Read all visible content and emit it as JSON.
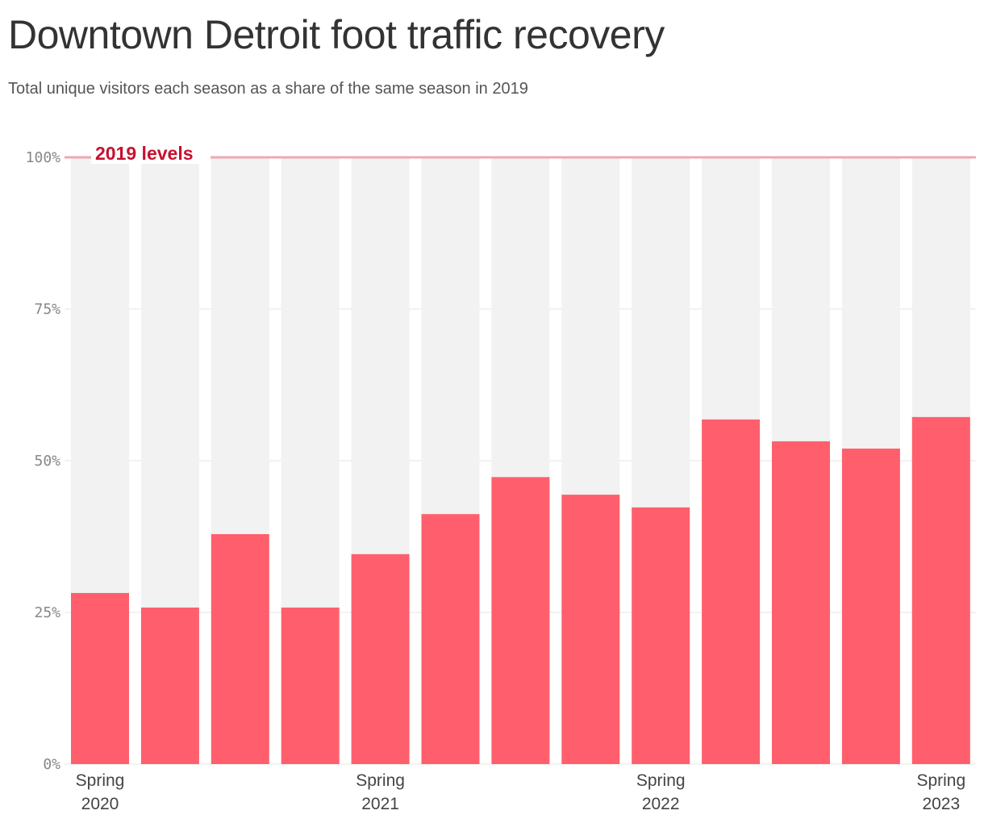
{
  "chart_data": {
    "type": "bar",
    "title": "Downtown Detroit foot traffic recovery",
    "subtitle": "Total unique visitors each season as a share of the same season in 2019",
    "values": [
      28.2,
      25.8,
      37.9,
      25.8,
      34.6,
      41.2,
      47.3,
      44.4,
      42.3,
      56.8,
      53.2,
      52.0,
      57.2
    ],
    "x_ticks": [
      {
        "index": 0,
        "line1": "Spring",
        "line2": "2020"
      },
      {
        "index": 4,
        "line1": "Spring",
        "line2": "2021"
      },
      {
        "index": 8,
        "line1": "Spring",
        "line2": "2022"
      },
      {
        "index": 12,
        "line1": "Spring",
        "line2": "2023"
      }
    ],
    "y_ticks": [
      0,
      25,
      50,
      75,
      100
    ],
    "y_tick_labels": [
      "0%",
      "25%",
      "50%",
      "75%",
      "100%"
    ],
    "ylim": [
      0,
      100
    ],
    "grid": true,
    "reference_line": {
      "value": 100,
      "label": "2019 levels"
    },
    "colors": {
      "bar": "#ff5f6d",
      "background_bar": "#f1f2f1",
      "reference": "#c8102e",
      "reference_line": "#f0a8b0",
      "grid": "#e4e4e4"
    }
  }
}
